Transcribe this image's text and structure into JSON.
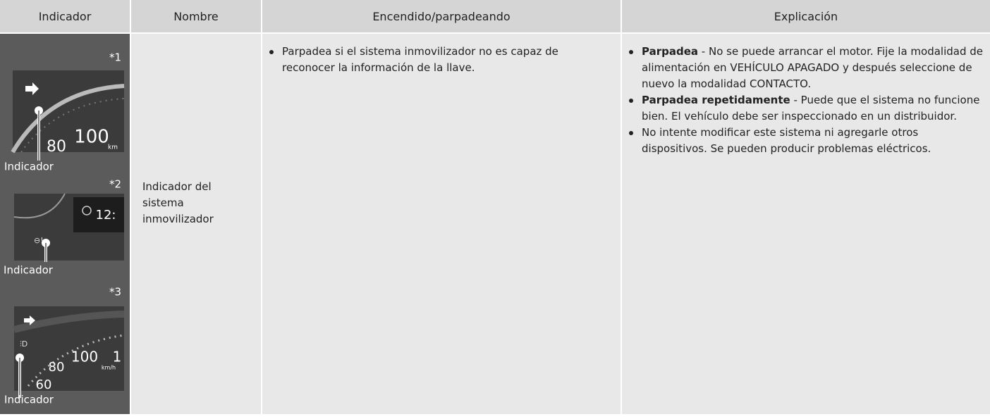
{
  "header": [
    "Indicador",
    "Nombre",
    "Encendido/parpadeando",
    "Explicación"
  ],
  "row": {
    "images": [
      {
        "note": "*1",
        "callout": "Indicador",
        "gauge_labels": [
          "100",
          "80",
          "km"
        ]
      },
      {
        "note": "*2",
        "callout": "Indicador",
        "gauge_labels": [
          "12:"
        ]
      },
      {
        "note": "*3",
        "callout": "Indicador",
        "gauge_labels": [
          "100",
          "1",
          "80",
          "60",
          "km/h"
        ]
      }
    ],
    "name": "Indicador del sistema inmovilizador",
    "status": [
      "Parpadea si el sistema inmovilizador no es capaz de reconocer la información de la llave."
    ],
    "explanation": [
      {
        "bold": "Parpadea",
        "text": "- No se puede arrancar el motor. Fije la modalidad de alimentación en VEHÍCULO APAGADO y después seleccione de nuevo la modalidad CONTACTO."
      },
      {
        "bold": "Parpadea repetidamente",
        "text": "- Puede que el sistema no funcione bien. El vehículo debe ser inspeccionado en un distribuidor."
      },
      {
        "text": "No intente modificar este sistema ni agregarle otros dispositivos. Se pueden producir problemas eléctricos."
      }
    ]
  }
}
